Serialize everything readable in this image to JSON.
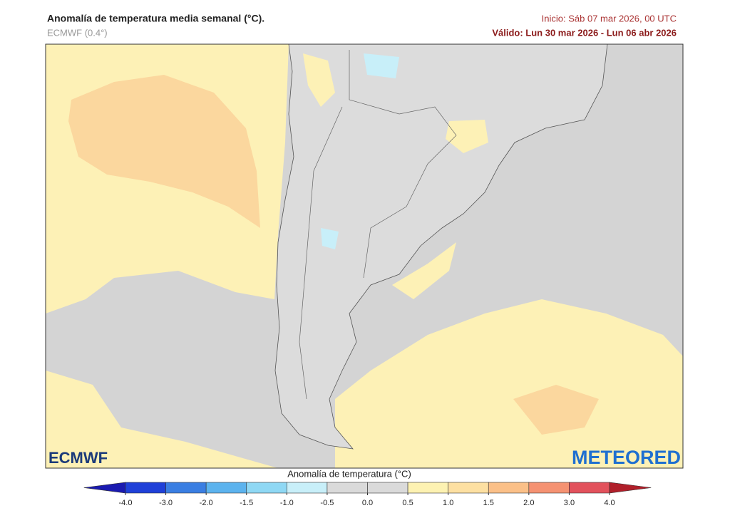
{
  "header": {
    "title": "Anomalía de temperatura media semanal (°C).",
    "model": "ECMWF (0.4°)",
    "start": "Inicio: Sáb 07 mar 2026, 00 UTC",
    "valid": "Válido: Lun 30 mar 2026 - Lun 06 abr 2026"
  },
  "logos": {
    "left": "ECMWF",
    "right": "METEORED"
  },
  "colorbar": {
    "label": "Anomalía de temperatura (°C)",
    "ticks": [
      {
        "value": -4,
        "label": "-4.0"
      },
      {
        "value": -3,
        "label": "-3.0"
      },
      {
        "value": -2,
        "label": "-2.0"
      },
      -1.5,
      {
        "value": -1,
        "label": "-1.0"
      },
      -0.5,
      {
        "value": 0,
        "label": "0.0"
      },
      0.5,
      {
        "value": 1,
        "label": "1.0"
      },
      1.5,
      {
        "value": 2,
        "label": "2.0"
      },
      {
        "value": 3,
        "label": "3.0"
      },
      {
        "value": 4,
        "label": "4.0"
      }
    ],
    "colors": [
      "#1a1ab0",
      "#1f40d8",
      "#3a7ee2",
      "#5cb3ee",
      "#8fd8f4",
      "#c8eff9",
      "#dadada",
      "#dadada",
      "#fdf2b2",
      "#fde0a2",
      "#fbc088",
      "#f59272",
      "#e2525c",
      "#b01f2a"
    ]
  }
}
